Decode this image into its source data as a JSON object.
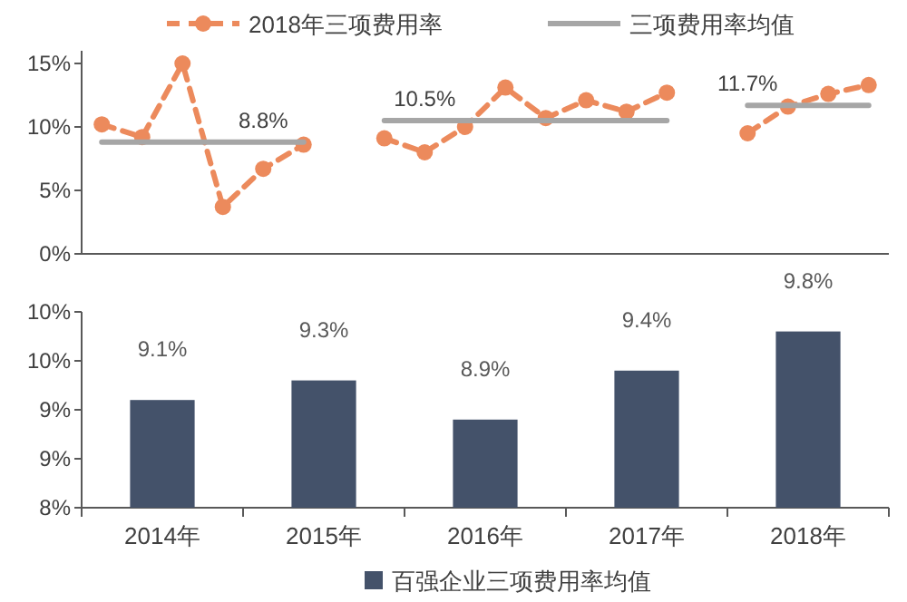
{
  "chart_data": [
    {
      "type": "line",
      "categories": [
        null,
        null,
        null,
        null,
        null,
        null,
        null,
        null,
        null,
        null,
        null,
        null,
        null,
        null,
        null,
        null,
        null,
        null,
        null,
        null
      ],
      "ylim": [
        0,
        16
      ],
      "yticks": [
        {
          "value": 0,
          "label": "0%"
        },
        {
          "value": 5,
          "label": "5%"
        },
        {
          "value": 10,
          "label": "10%"
        },
        {
          "value": 15,
          "label": "15%"
        }
      ],
      "legend": "top",
      "grid": false,
      "series": [
        {
          "name": "2018年三项费用率",
          "color": "#ec8a5c",
          "marker": "circle",
          "line_style": "dashed",
          "values": [
            10.2,
            9.2,
            15.0,
            3.7,
            6.7,
            8.6,
            null,
            9.1,
            8.0,
            10.0,
            13.1,
            10.7,
            12.1,
            11.2,
            12.7,
            null,
            9.5,
            11.6,
            12.6,
            13.3
          ]
        },
        {
          "name": "三项费用率均值",
          "color": "#a6a6a6",
          "marker": "none",
          "line_style": "solid",
          "values": [
            8.8,
            8.8,
            8.8,
            8.8,
            8.8,
            8.8,
            null,
            10.5,
            10.5,
            10.5,
            10.5,
            10.5,
            10.5,
            10.5,
            10.5,
            null,
            11.7,
            11.7,
            11.7,
            11.7
          ],
          "value_labels": [
            null,
            null,
            null,
            null,
            "8.8%",
            null,
            null,
            null,
            "10.5%",
            null,
            null,
            null,
            null,
            null,
            null,
            null,
            "11.7%",
            null,
            null,
            null
          ]
        }
      ]
    },
    {
      "type": "bar",
      "categories": [
        "2014年",
        "2015年",
        "2016年",
        "2017年",
        "2018年"
      ],
      "ylim": [
        8,
        10
      ],
      "yticks": [
        {
          "value": 8,
          "label": "8%"
        },
        {
          "value": 8.5,
          "label": "9%"
        },
        {
          "value": 9,
          "label": "9%"
        },
        {
          "value": 9.5,
          "label": "10%"
        },
        {
          "value": 10,
          "label": "10%"
        }
      ],
      "legend": "bottom",
      "grid": false,
      "series": [
        {
          "name": "百强企业三项费用率均值",
          "color": "#44526a",
          "values": [
            9.1,
            9.3,
            8.9,
            9.4,
            9.8
          ],
          "value_labels": [
            "9.1%",
            "9.3%",
            "8.9%",
            "9.4%",
            "9.8%"
          ]
        }
      ]
    }
  ]
}
